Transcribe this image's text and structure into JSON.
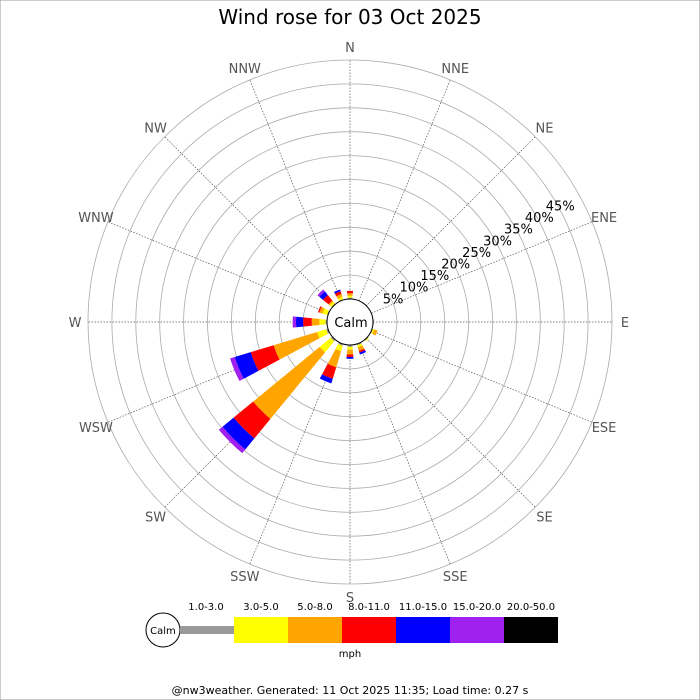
{
  "chart_data": {
    "type": "wind-rose",
    "title": "Wind rose for 03 Oct 2025",
    "directions": [
      "N",
      "NNE",
      "NE",
      "ENE",
      "E",
      "ESE",
      "SE",
      "SSE",
      "S",
      "SSW",
      "SW",
      "WSW",
      "W",
      "WNW",
      "NW",
      "NNW"
    ],
    "radial_ticks": [
      "5%",
      "10%",
      "15%",
      "20%",
      "25%",
      "30%",
      "35%",
      "40%",
      "45%"
    ],
    "radial_values": [
      5,
      10,
      15,
      20,
      25,
      30,
      35,
      40,
      45
    ],
    "rmax": 50,
    "calm_label": "Calm",
    "speed_unit": "mph",
    "speed_bins": [
      {
        "label": "1.0-3.0",
        "color": "#999999"
      },
      {
        "label": "3.0-5.0",
        "color": "#ffff00"
      },
      {
        "label": "5.0-8.0",
        "color": "#ffa500"
      },
      {
        "label": "8.0-11.0",
        "color": "#ff0000"
      },
      {
        "label": "11.0-15.0",
        "color": "#0000ff"
      },
      {
        "label": "15.0-20.0",
        "color": "#a020f0"
      },
      {
        "label": "20.0-50.0",
        "color": "#000000"
      }
    ],
    "frequencies": {
      "N": [
        0.3,
        0.4,
        0.5,
        0.5,
        0,
        0,
        0
      ],
      "NNE": [
        0,
        0,
        0,
        0,
        0,
        0,
        0
      ],
      "NE": [
        0,
        0,
        0,
        0,
        0,
        0,
        0
      ],
      "ENE": [
        0,
        0,
        0,
        0,
        0,
        0,
        0
      ],
      "E": [
        0.2,
        0,
        0,
        0,
        0,
        0,
        0
      ],
      "ESE": [
        0.2,
        0.3,
        0.7,
        0,
        0,
        0,
        0
      ],
      "SE": [
        0.2,
        0.2,
        0,
        0,
        0,
        0,
        0
      ],
      "SSE": [
        0.3,
        0.4,
        0.8,
        0.4,
        0.4,
        0,
        0
      ],
      "S": [
        0.4,
        0.6,
        1.0,
        0.5,
        0.4,
        0,
        0
      ],
      "SSW": [
        0.4,
        1.2,
        3.5,
        2.5,
        1.0,
        0,
        0
      ],
      "SW": [
        0.4,
        3.0,
        18.0,
        5.3,
        3.0,
        1.0,
        0
      ],
      "WSW": [
        0.4,
        2.0,
        9.5,
        5.0,
        3.5,
        1.0,
        0
      ],
      "W": [
        0.3,
        1.3,
        1.6,
        1.8,
        1.5,
        0.7,
        0
      ],
      "WNW": [
        0.2,
        1.0,
        0.7,
        0.3,
        0,
        0,
        0
      ],
      "NW": [
        0.2,
        0.5,
        0.3,
        1.5,
        1.0,
        0.5,
        0
      ],
      "NNW": [
        0.2,
        0.5,
        0.6,
        0.6,
        0.4,
        0,
        0
      ]
    }
  },
  "footer": "@nw3weather. Generated: 11 Oct 2025 11:35; Load time: 0.27 s"
}
